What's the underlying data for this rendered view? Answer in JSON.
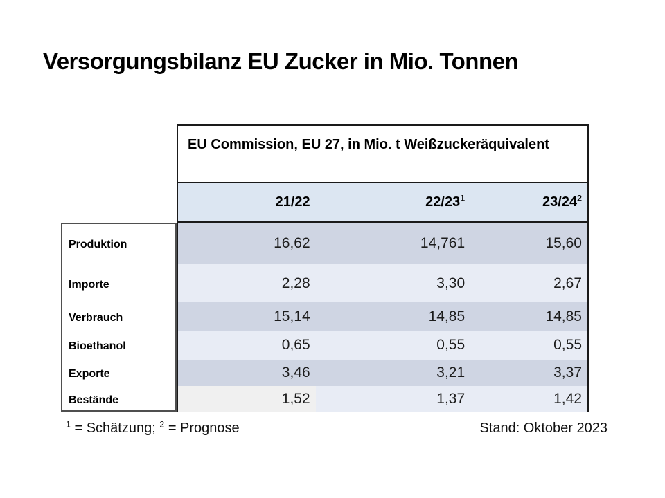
{
  "title": "Versorgungsbilanz EU Zucker in Mio. Tonnen",
  "table": {
    "header": "EU Commission, EU 27, in Mio. t Weißzuckeräquivalent",
    "columns": [
      {
        "label": "21/22",
        "sup": ""
      },
      {
        "label": "22/23",
        "sup": "1"
      },
      {
        "label": "23/24",
        "sup": "2"
      }
    ],
    "rows": [
      {
        "label": "Produktion",
        "values": [
          "16,62",
          "14,761",
          "15,60"
        ]
      },
      {
        "label": "Importe",
        "values": [
          "2,28",
          "3,30",
          "2,67"
        ]
      },
      {
        "label": "Verbrauch",
        "values": [
          "15,14",
          "14,85",
          "14,85"
        ]
      },
      {
        "label": "Bioethanol",
        "values": [
          "0,65",
          "0,55",
          "0,55"
        ]
      },
      {
        "label": "Exporte",
        "values": [
          "3,46",
          "3,21",
          "3,37"
        ]
      },
      {
        "label": "Bestände",
        "values": [
          "1,52",
          "1,37",
          "1,42"
        ]
      }
    ]
  },
  "footnote": {
    "sup1": "1",
    "text1": "= Schätzung;",
    "sup2": "2",
    "text2": "= Prognose",
    "right": "Stand: Oktober 2023"
  },
  "colors": {
    "band_dark": "#cfd5e3",
    "band_light": "#e8ecf5",
    "years_header_bg": "#dce6f2",
    "bestaende_first_cell": "#f0f0f0",
    "border_dark": "#1a1a1a",
    "border_gray": "#4f4f4f"
  }
}
